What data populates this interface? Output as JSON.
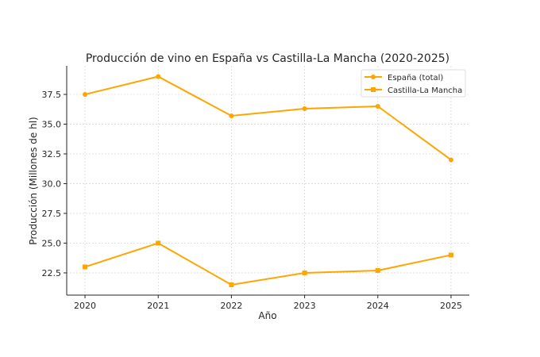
{
  "chart_data": {
    "type": "line",
    "title": "Producción de vino en España vs Castilla-La Mancha (2020-2025)",
    "xlabel": "Año",
    "ylabel": "Producción (Millones de hl)",
    "x": [
      2020,
      2021,
      2022,
      2023,
      2024,
      2025
    ],
    "xticks": [
      "2020",
      "2021",
      "2022",
      "2023",
      "2024",
      "2025"
    ],
    "yticks": [
      "22.5",
      "25.0",
      "27.5",
      "30.0",
      "32.5",
      "35.0",
      "37.5"
    ],
    "ytick_values": [
      22.5,
      25.0,
      27.5,
      30.0,
      32.5,
      35.0,
      37.5
    ],
    "ylim": [
      20.63,
      39.9
    ],
    "xlim": [
      2019.75,
      2025.25
    ],
    "grid": true,
    "legend_position": "top-right",
    "series": [
      {
        "name": "España (total)",
        "marker": "circle",
        "color": "#FFA500",
        "values": [
          37.5,
          39.0,
          35.7,
          36.3,
          36.5,
          32.0
        ]
      },
      {
        "name": "Castilla-La Mancha",
        "marker": "square",
        "color": "#FFA500",
        "values": [
          23.0,
          25.0,
          21.5,
          22.5,
          22.7,
          24.0
        ]
      }
    ]
  }
}
